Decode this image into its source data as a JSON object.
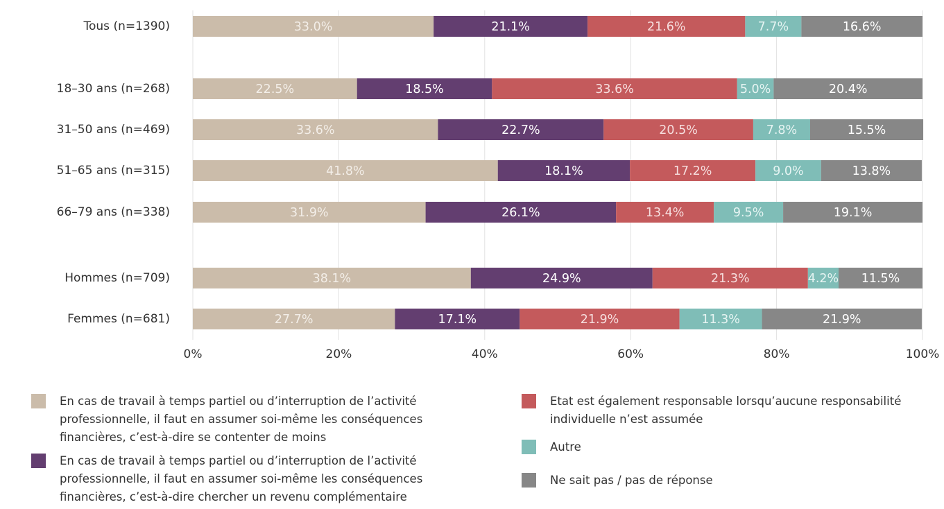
{
  "chart_data": {
    "type": "stacked-barh",
    "categories": [
      "Tous (n=1390)",
      "18–30 ans (n=268)",
      "31–50 ans (n=469)",
      "51–65 ans (n=315)",
      "66–79 ans (n=338)",
      "Hommes (n=709)",
      "Femmes (n=681)"
    ],
    "series": [
      {
        "name": "En cas de travail à temps partiel ou d’interruption de l’activité professionnelle, il faut en assumer soi-même les conséquences financières, c’est-à-dire se contenter de moins",
        "color": "#cbbcaa",
        "label_color": "#f3eee8",
        "values": [
          33.0,
          22.5,
          33.6,
          41.8,
          31.9,
          38.1,
          27.7
        ],
        "value_labels": [
          "33.0%",
          "22.5%",
          "33.6%",
          "41.8%",
          "31.9%",
          "38.1%",
          "27.7%"
        ]
      },
      {
        "name": "En cas de travail à temps partiel ou d’interruption de l’activité professionnelle, il faut en assumer soi-même les conséquences financières, c’est-à-dire chercher un revenu complémentaire",
        "color": "#633e70",
        "label_color": "#ffffff",
        "values": [
          21.1,
          18.5,
          22.7,
          18.1,
          26.1,
          24.9,
          17.1
        ],
        "value_labels": [
          "21.1%",
          "18.5%",
          "22.7%",
          "18.1%",
          "26.1%",
          "24.9%",
          "17.1%"
        ]
      },
      {
        "name": "Etat est également responsable lorsqu’aucune responsabilité individuelle n’est assumée",
        "color": "#c45a5c",
        "label_color": "#f6dede",
        "values": [
          21.6,
          33.6,
          20.5,
          17.2,
          13.4,
          21.3,
          21.9
        ],
        "value_labels": [
          "21.6%",
          "33.6%",
          "20.5%",
          "17.2%",
          "13.4%",
          "21.3%",
          "21.9%"
        ]
      },
      {
        "name": "Autre",
        "color": "#7fbdb7",
        "label_color": "#e6f4f2",
        "values": [
          7.7,
          5.0,
          7.8,
          9.0,
          9.5,
          4.2,
          11.3
        ],
        "value_labels": [
          "7.7%",
          "5.0%",
          "7.8%",
          "9.0%",
          "9.5%",
          "4.2%",
          "11.3%"
        ]
      },
      {
        "name": "Ne sait pas / pas de réponse",
        "color": "#878787",
        "label_color": "#ffffff",
        "values": [
          16.6,
          20.4,
          15.5,
          13.8,
          19.1,
          11.5,
          21.9
        ],
        "value_labels": [
          "16.6%",
          "20.4%",
          "15.5%",
          "13.8%",
          "19.1%",
          "11.5%",
          "21.9%"
        ]
      }
    ],
    "xlim": [
      0,
      100
    ],
    "xticks": [
      {
        "value": 0,
        "label": "0%"
      },
      {
        "value": 20,
        "label": "20%"
      },
      {
        "value": 40,
        "label": "40%"
      },
      {
        "value": 60,
        "label": "60%"
      },
      {
        "value": 80,
        "label": "80%"
      },
      {
        "value": 100,
        "label": "100%"
      }
    ],
    "grid": true
  }
}
